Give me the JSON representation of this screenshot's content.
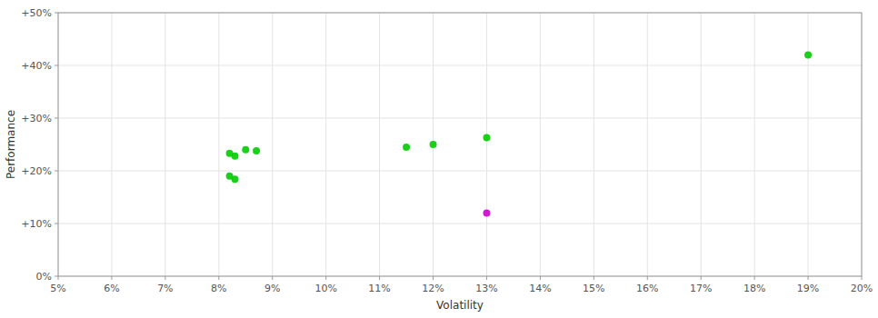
{
  "chart_data": {
    "type": "scatter",
    "xlabel": "Volatility",
    "ylabel": "Performance",
    "xlim": [
      0.05,
      0.2
    ],
    "ylim": [
      0.0,
      0.5
    ],
    "xticks": [
      {
        "value": 0.05,
        "label": "5%"
      },
      {
        "value": 0.06,
        "label": "6%"
      },
      {
        "value": 0.07,
        "label": "7%"
      },
      {
        "value": 0.08,
        "label": "8%"
      },
      {
        "value": 0.09,
        "label": "9%"
      },
      {
        "value": 0.1,
        "label": "10%"
      },
      {
        "value": 0.11,
        "label": "11%"
      },
      {
        "value": 0.12,
        "label": "12%"
      },
      {
        "value": 0.13,
        "label": "13%"
      },
      {
        "value": 0.14,
        "label": "14%"
      },
      {
        "value": 0.15,
        "label": "15%"
      },
      {
        "value": 0.16,
        "label": "16%"
      },
      {
        "value": 0.17,
        "label": "17%"
      },
      {
        "value": 0.18,
        "label": "18%"
      },
      {
        "value": 0.19,
        "label": "19%"
      },
      {
        "value": 0.2,
        "label": "20%"
      }
    ],
    "yticks": [
      {
        "value": 0.0,
        "label": "0%"
      },
      {
        "value": 0.1,
        "label": "+10%"
      },
      {
        "value": 0.2,
        "label": "+20%"
      },
      {
        "value": 0.3,
        "label": "+30%"
      },
      {
        "value": 0.4,
        "label": "+40%"
      },
      {
        "value": 0.5,
        "label": "+50%"
      }
    ],
    "grid": true,
    "series": [
      {
        "color": "#00cc00",
        "x": [
          0.082,
          0.083,
          0.085,
          0.087,
          0.082,
          0.083,
          0.115,
          0.13,
          0.12,
          0.19
        ],
        "values": [
          0.233,
          0.228,
          0.24,
          0.238,
          0.19,
          0.184,
          0.245,
          0.263,
          0.25,
          0.42
        ]
      },
      {
        "color": "#cc00cc",
        "x": [
          0.13
        ],
        "values": [
          0.12
        ]
      }
    ]
  }
}
